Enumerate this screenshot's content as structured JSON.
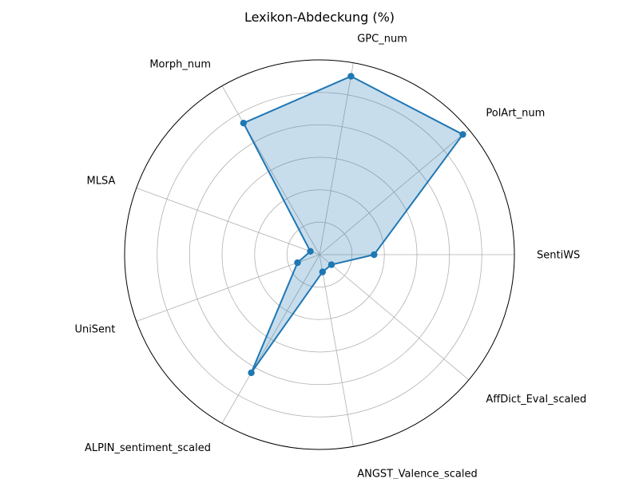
{
  "chart_data": {
    "type": "radar",
    "title": "Lexikon-Abdeckung (%)",
    "categories": [
      "SentiWS",
      "PolArt_num",
      "GPC_num",
      "Morph_num",
      "MLSA",
      "UniSent",
      "ALPIN_sentiment_scaled",
      "ANGST_Valence_scaled",
      "AffDict_Eval_scaled"
    ],
    "series": [
      {
        "values": [
          28,
          96,
          93,
          78,
          5,
          12,
          70,
          9,
          8
        ],
        "color": "#1f77b4",
        "fill_color": "#1f77b4",
        "fill_opacity": 0.25
      }
    ],
    "rlim": [
      0,
      100
    ],
    "radial_gridlines": [
      16.7,
      33.3,
      50,
      66.7,
      83.3
    ],
    "radial_tick_labels_shown": false,
    "grid": true
  }
}
